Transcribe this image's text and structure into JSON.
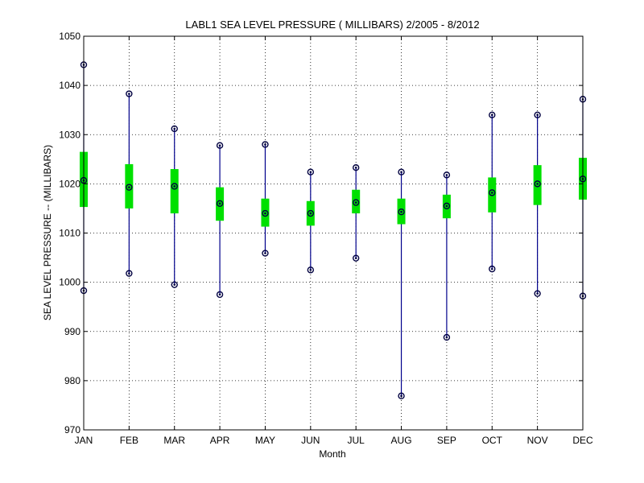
{
  "chart_data": {
    "type": "box",
    "title": "LABL1  SEA LEVEL PRESSURE ( MILLIBARS) 2/2005 - 8/2012",
    "xlabel": "Month",
    "ylabel": "SEA LEVEL PRESSURE -- (MILLIBARS)",
    "ylim": [
      970,
      1050
    ],
    "yticks": [
      970,
      980,
      990,
      1000,
      1010,
      1020,
      1030,
      1040,
      1050
    ],
    "grid": true,
    "categories": [
      "JAN",
      "FEB",
      "MAR",
      "APR",
      "MAY",
      "JUN",
      "JUL",
      "AUG",
      "SEP",
      "OCT",
      "NOV",
      "DEC"
    ],
    "min": [
      998.3,
      1001.8,
      999.5,
      997.5,
      1005.9,
      1002.5,
      1004.9,
      976.9,
      988.8,
      1002.7,
      997.7,
      997.2
    ],
    "q1": [
      1015.3,
      1015.0,
      1014.0,
      1012.5,
      1011.3,
      1011.5,
      1014.0,
      1011.8,
      1013.0,
      1014.2,
      1015.7,
      1016.8
    ],
    "median": [
      1020.7,
      1019.3,
      1019.5,
      1016.0,
      1014.0,
      1014.0,
      1016.2,
      1014.3,
      1015.5,
      1018.2,
      1020.0,
      1021.0
    ],
    "q3": [
      1026.5,
      1024.0,
      1023.0,
      1019.3,
      1017.0,
      1016.5,
      1018.8,
      1017.0,
      1017.8,
      1021.3,
      1023.8,
      1025.3
    ],
    "max": [
      1044.2,
      1038.3,
      1031.2,
      1027.8,
      1028.0,
      1022.4,
      1023.3,
      1022.4,
      1021.8,
      1034.0,
      1034.0,
      1037.2
    ]
  }
}
